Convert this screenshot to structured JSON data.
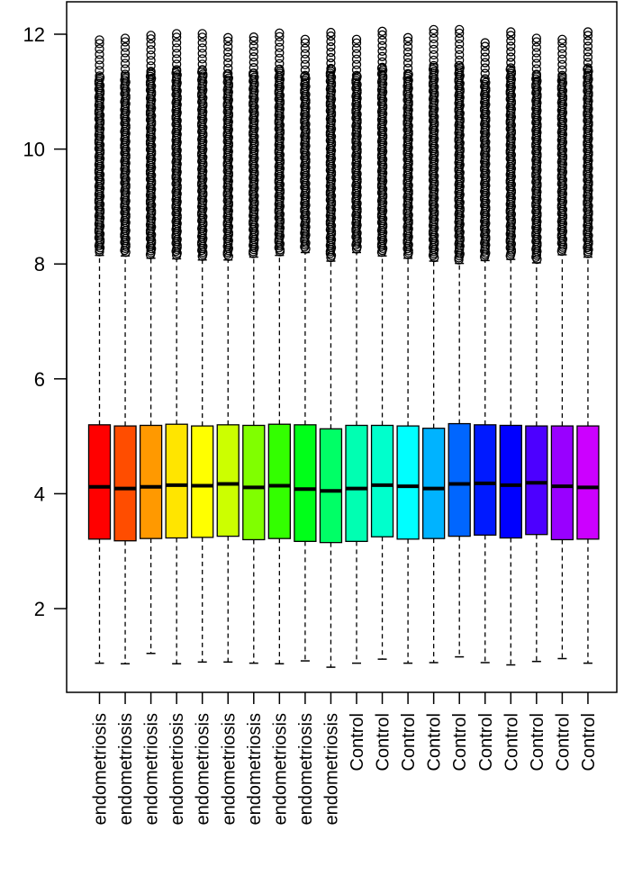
{
  "chart_data": {
    "type": "boxplot",
    "title": "",
    "xlabel": "",
    "ylabel": "",
    "ylim": [
      0.6,
      12.5
    ],
    "y_ticks": [
      2,
      4,
      6,
      8,
      10,
      12
    ],
    "y_tick_labels": [
      "2",
      "4",
      "6",
      "8",
      "10",
      "12"
    ],
    "grid": false,
    "categories": [
      "endometriosis",
      "endometriosis",
      "endometriosis",
      "endometriosis",
      "endometriosis",
      "endometriosis",
      "endometriosis",
      "endometriosis",
      "endometriosis",
      "endometriosis",
      "Control",
      "Control",
      "Control",
      "Control",
      "Control",
      "Control",
      "Control",
      "Control",
      "Control",
      "Control"
    ],
    "colors": [
      "#FF0000",
      "#FF4D00",
      "#FF9900",
      "#FFE500",
      "#FFFF00",
      "#CCFF00",
      "#80FF00",
      "#33FF00",
      "#00FF19",
      "#00FF66",
      "#00FFB2",
      "#00FFCC",
      "#00FFFF",
      "#00B3FF",
      "#0066FF",
      "#001AFF",
      "#0000FF",
      "#4C00FF",
      "#9900FF",
      "#CC00FF"
    ],
    "boxes": [
      {
        "min": 1.05,
        "q1": 3.21,
        "median": 4.12,
        "q3": 5.2,
        "whisker_high": 8.15,
        "outlier_max": 11.9
      },
      {
        "min": 1.04,
        "q1": 3.18,
        "median": 4.09,
        "q3": 5.18,
        "whisker_high": 8.14,
        "outlier_max": 11.93
      },
      {
        "min": 1.22,
        "q1": 3.22,
        "median": 4.12,
        "q3": 5.19,
        "whisker_high": 8.1,
        "outlier_max": 11.98
      },
      {
        "min": 1.04,
        "q1": 3.23,
        "median": 4.15,
        "q3": 5.21,
        "whisker_high": 8.09,
        "outlier_max": 12.01
      },
      {
        "min": 1.07,
        "q1": 3.24,
        "median": 4.14,
        "q3": 5.18,
        "whisker_high": 8.07,
        "outlier_max": 12.01
      },
      {
        "min": 1.07,
        "q1": 3.26,
        "median": 4.17,
        "q3": 5.2,
        "whisker_high": 8.07,
        "outlier_max": 11.94
      },
      {
        "min": 1.05,
        "q1": 3.2,
        "median": 4.11,
        "q3": 5.19,
        "whisker_high": 8.12,
        "outlier_max": 11.95
      },
      {
        "min": 1.04,
        "q1": 3.22,
        "median": 4.14,
        "q3": 5.21,
        "whisker_high": 8.15,
        "outlier_max": 12.02
      },
      {
        "min": 1.09,
        "q1": 3.17,
        "median": 4.08,
        "q3": 5.2,
        "whisker_high": 8.2,
        "outlier_max": 11.91
      },
      {
        "min": 0.98,
        "q1": 3.15,
        "median": 4.05,
        "q3": 5.13,
        "whisker_high": 8.05,
        "outlier_max": 12.03
      },
      {
        "min": 1.05,
        "q1": 3.17,
        "median": 4.09,
        "q3": 5.19,
        "whisker_high": 8.2,
        "outlier_max": 11.91
      },
      {
        "min": 1.12,
        "q1": 3.25,
        "median": 4.15,
        "q3": 5.19,
        "whisker_high": 8.14,
        "outlier_max": 12.05
      },
      {
        "min": 1.05,
        "q1": 3.21,
        "median": 4.13,
        "q3": 5.18,
        "whisker_high": 8.1,
        "outlier_max": 11.94
      },
      {
        "min": 1.06,
        "q1": 3.22,
        "median": 4.09,
        "q3": 5.14,
        "whisker_high": 8.05,
        "outlier_max": 12.08
      },
      {
        "min": 1.16,
        "q1": 3.26,
        "median": 4.17,
        "q3": 5.22,
        "whisker_high": 8.01,
        "outlier_max": 12.08
      },
      {
        "min": 1.06,
        "q1": 3.28,
        "median": 4.18,
        "q3": 5.2,
        "whisker_high": 8.06,
        "outlier_max": 11.85
      },
      {
        "min": 1.02,
        "q1": 3.23,
        "median": 4.15,
        "q3": 5.19,
        "whisker_high": 8.08,
        "outlier_max": 12.04
      },
      {
        "min": 1.08,
        "q1": 3.29,
        "median": 4.19,
        "q3": 5.18,
        "whisker_high": 8.02,
        "outlier_max": 11.93
      },
      {
        "min": 1.13,
        "q1": 3.2,
        "median": 4.13,
        "q3": 5.18,
        "whisker_high": 8.16,
        "outlier_max": 11.91
      },
      {
        "min": 1.05,
        "q1": 3.21,
        "median": 4.11,
        "q3": 5.18,
        "whisker_high": 8.12,
        "outlier_max": 12.04
      }
    ]
  }
}
